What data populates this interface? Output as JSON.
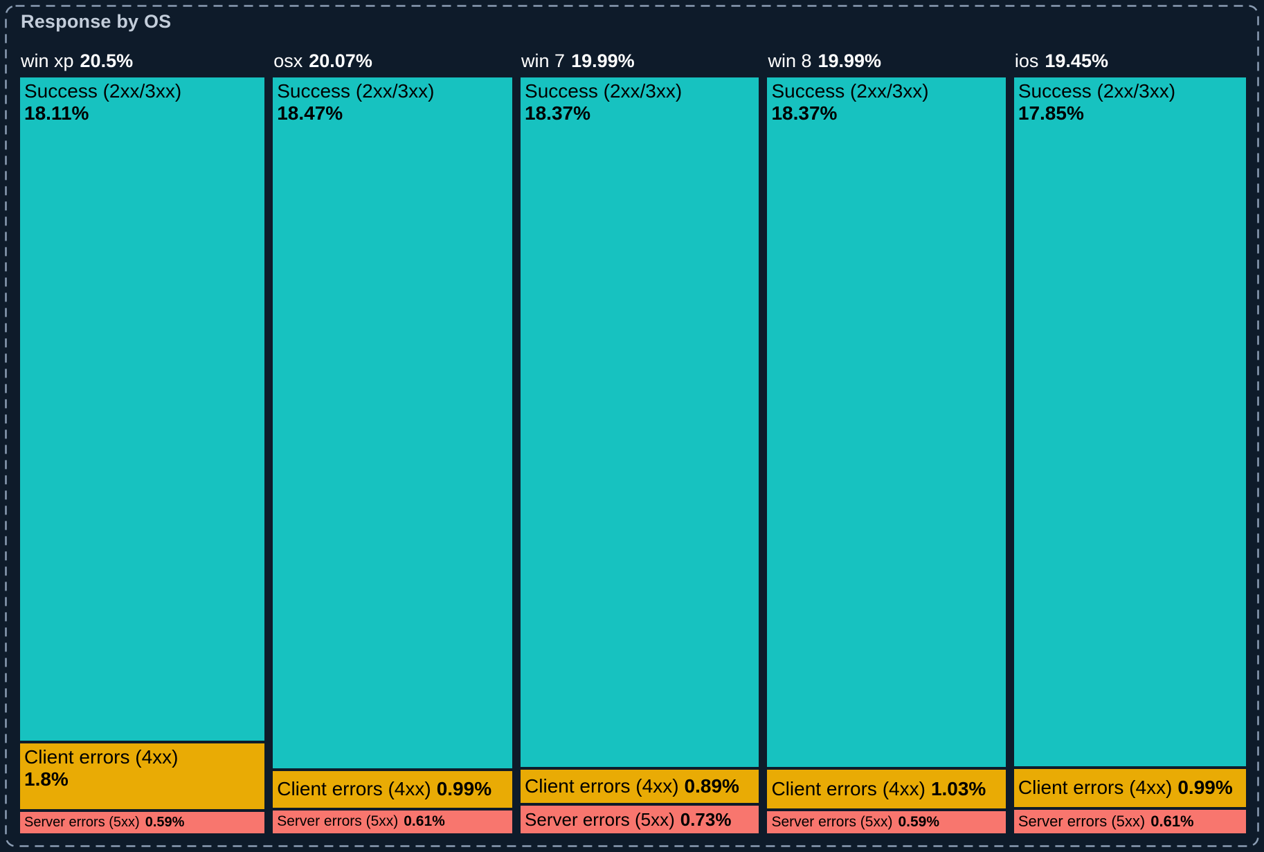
{
  "panel": {
    "title": "Response by OS"
  },
  "colors": {
    "background": "#0e1b2a",
    "selection_border": "#8b9db3",
    "title_text": "#c3cdda",
    "header_text": "#ffffff",
    "node_text": "#000000",
    "success": "#17c2c0",
    "client_errors": "#e9ab05",
    "server_errors": "#f8766e"
  },
  "chart_data": {
    "type": "treemap",
    "title": "Response by OS",
    "value_unit": "%",
    "legend_position": "none",
    "layout": "columns-by-os, segments stacked vertically, area proportional to percent",
    "series": [
      {
        "name": "win xp",
        "total": 20.5,
        "total_display": "20.5%",
        "segments": [
          {
            "key": "success",
            "label": "Success (2xx/3xx)",
            "value": 18.11,
            "display": "18.11%"
          },
          {
            "key": "client_errors",
            "label": "Client errors (4xx)",
            "value": 1.8,
            "display": "1.8%"
          },
          {
            "key": "server_errors",
            "label": "Server errors (5xx)",
            "value": 0.59,
            "display": "0.59%"
          }
        ]
      },
      {
        "name": "osx",
        "total": 20.07,
        "total_display": "20.07%",
        "segments": [
          {
            "key": "success",
            "label": "Success (2xx/3xx)",
            "value": 18.47,
            "display": "18.47%"
          },
          {
            "key": "client_errors",
            "label": "Client errors (4xx)",
            "value": 0.99,
            "display": "0.99%"
          },
          {
            "key": "server_errors",
            "label": "Server errors (5xx)",
            "value": 0.61,
            "display": "0.61%"
          }
        ]
      },
      {
        "name": "win 7",
        "total": 19.99,
        "total_display": "19.99%",
        "segments": [
          {
            "key": "success",
            "label": "Success (2xx/3xx)",
            "value": 18.37,
            "display": "18.37%"
          },
          {
            "key": "client_errors",
            "label": "Client errors (4xx)",
            "value": 0.89,
            "display": "0.89%"
          },
          {
            "key": "server_errors",
            "label": "Server errors (5xx)",
            "value": 0.73,
            "display": "0.73%"
          }
        ]
      },
      {
        "name": "win 8",
        "total": 19.99,
        "total_display": "19.99%",
        "segments": [
          {
            "key": "success",
            "label": "Success (2xx/3xx)",
            "value": 18.37,
            "display": "18.37%"
          },
          {
            "key": "client_errors",
            "label": "Client errors (4xx)",
            "value": 1.03,
            "display": "1.03%"
          },
          {
            "key": "server_errors",
            "label": "Server errors (5xx)",
            "value": 0.59,
            "display": "0.59%"
          }
        ]
      },
      {
        "name": "ios",
        "total": 19.45,
        "total_display": "19.45%",
        "segments": [
          {
            "key": "success",
            "label": "Success (2xx/3xx)",
            "value": 17.85,
            "display": "17.85%"
          },
          {
            "key": "client_errors",
            "label": "Client errors (4xx)",
            "value": 0.99,
            "display": "0.99%"
          },
          {
            "key": "server_errors",
            "label": "Server errors (5xx)",
            "value": 0.61,
            "display": "0.61%"
          }
        ]
      }
    ]
  }
}
